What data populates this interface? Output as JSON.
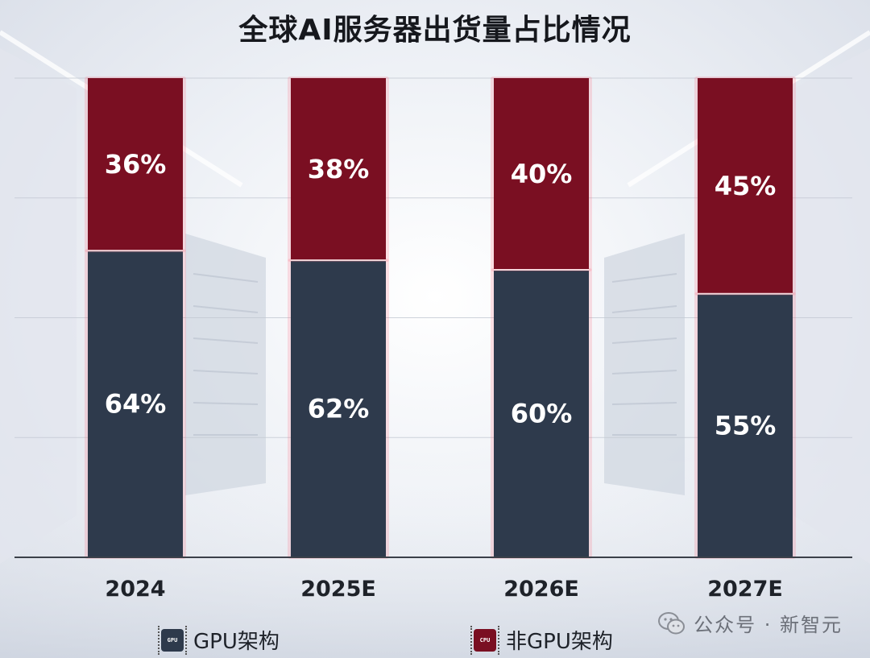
{
  "title": "全球AI服务器出货量占比情况",
  "colors": {
    "gpu": "#2e3a4c",
    "non_gpu": "#7a0f22",
    "axis": "#3b4049"
  },
  "legend": [
    {
      "label": "GPU架构",
      "icon": "gpu-chip-icon",
      "chip_text": "GPU",
      "color": "#2e3a4c"
    },
    {
      "label": "非GPU架构",
      "icon": "cpu-chip-icon",
      "chip_text": "CPU",
      "color": "#7a0f22"
    }
  ],
  "watermark": "公众号 · 新智元",
  "chart_data": {
    "type": "bar",
    "stacked": true,
    "categories": [
      "2024",
      "2025E",
      "2026E",
      "2027E"
    ],
    "series": [
      {
        "name": "GPU架构",
        "values": [
          64,
          62,
          60,
          55
        ],
        "labels": [
          "64%",
          "62%",
          "60%",
          "55%"
        ]
      },
      {
        "name": "非GPU架构",
        "values": [
          36,
          38,
          40,
          45
        ],
        "labels": [
          "36%",
          "38%",
          "40%",
          "45%"
        ]
      }
    ],
    "ylim": [
      0,
      100
    ],
    "title": "全球AI服务器出货量占比情况",
    "xlabel": "",
    "ylabel": "",
    "grid": true,
    "legend_position": "bottom"
  }
}
